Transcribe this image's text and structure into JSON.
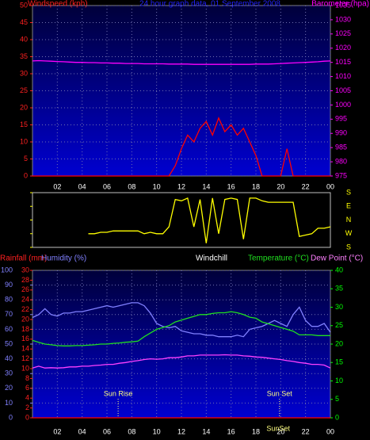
{
  "chart_data": [
    {
      "type": "line",
      "title": "24 hour graph data, 01 September 2008",
      "ylabel": "Windspeed (kph)",
      "y2label": "Barometer (hpa)",
      "x": [
        0,
        0.5,
        1,
        1.5,
        2,
        2.5,
        3,
        3.5,
        4,
        4.5,
        5,
        5.5,
        6,
        6.5,
        7,
        7.5,
        8,
        8.5,
        9,
        9.5,
        10,
        10.5,
        11,
        11.5,
        12,
        12.5,
        13,
        13.5,
        14,
        14.5,
        15,
        15.5,
        16,
        16.5,
        17,
        17.5,
        18,
        18.5,
        19,
        19.5,
        20,
        20.5,
        21,
        21.5,
        22,
        22.5,
        23,
        23.5,
        24
      ],
      "xlim": [
        0,
        24
      ],
      "xticks": [
        {
          "value": 2,
          "label": "02"
        },
        {
          "value": 4,
          "label": "04"
        },
        {
          "value": 6,
          "label": "06"
        },
        {
          "value": 8,
          "label": "08"
        },
        {
          "value": 10,
          "label": "10"
        },
        12,
        14,
        16,
        18,
        20,
        22,
        {
          "value": 24,
          "label": "00"
        }
      ],
      "ylim": [
        0,
        50
      ],
      "yticks": [
        0,
        5,
        10,
        15,
        20,
        25,
        30,
        35,
        40,
        45,
        50
      ],
      "y2lim": [
        975,
        1035
      ],
      "y2ticks": [
        975,
        980,
        985,
        990,
        995,
        1000,
        1005,
        1010,
        1015,
        1020,
        1025,
        1030,
        1035
      ],
      "axis_colors": {
        "y": "#ff2020",
        "y2": "#ff00ff"
      },
      "grid": true,
      "series": [
        {
          "name": "Windspeed",
          "color": "#ff0000",
          "axis": "y",
          "values": [
            0,
            0,
            0,
            0,
            0,
            0,
            0,
            0,
            0,
            0,
            0,
            0,
            0,
            0,
            0,
            0,
            0,
            0,
            0,
            0,
            0,
            0,
            0,
            3,
            8,
            12,
            10,
            14,
            16,
            12,
            17,
            13,
            15,
            12,
            14,
            10,
            6,
            0,
            0,
            0,
            0,
            8,
            0,
            0,
            0,
            0,
            0,
            0,
            0
          ]
        },
        {
          "name": "Barometer",
          "color": "#ff00ff",
          "axis": "y2",
          "values": [
            1015.5,
            1015.6,
            1015.5,
            1015.4,
            1015.3,
            1015.2,
            1015.1,
            1015.0,
            1015.0,
            1014.9,
            1014.9,
            1014.8,
            1014.8,
            1014.7,
            1014.7,
            1014.6,
            1014.6,
            1014.6,
            1014.5,
            1014.5,
            1014.5,
            1014.5,
            1014.4,
            1014.4,
            1014.4,
            1014.4,
            1014.3,
            1014.3,
            1014.3,
            1014.3,
            1014.3,
            1014.3,
            1014.3,
            1014.3,
            1014.3,
            1014.3,
            1014.4,
            1014.4,
            1014.4,
            1014.5,
            1014.6,
            1014.7,
            1014.8,
            1014.9,
            1015.0,
            1015.1,
            1015.2,
            1015.4,
            1015.5
          ]
        }
      ]
    },
    {
      "type": "line",
      "x": [
        0,
        0.5,
        1,
        1.5,
        2,
        2.5,
        3,
        3.5,
        4,
        4.5,
        5,
        5.5,
        6,
        6.5,
        7,
        7.5,
        8,
        8.5,
        9,
        9.5,
        10,
        10.5,
        11,
        11.5,
        12,
        12.5,
        13,
        13.5,
        14,
        14.5,
        15,
        15.5,
        16,
        16.5,
        17,
        17.5,
        18,
        18.5,
        19,
        19.5,
        20,
        20.5,
        21,
        21.5,
        22,
        22.5,
        23,
        23.5,
        24
      ],
      "xlim": [
        0,
        24
      ],
      "ylim": [
        0,
        4
      ],
      "yticks": [
        {
          "value": 4,
          "label": "S"
        },
        {
          "value": 3,
          "label": "E"
        },
        {
          "value": 2,
          "label": "N"
        },
        {
          "value": 1,
          "label": "W"
        },
        {
          "value": 0,
          "label": "S"
        }
      ],
      "axis_colors": {
        "y": "#ffff00"
      },
      "grid": false,
      "series": [
        {
          "name": "Wind direction",
          "color": "#ffff00",
          "axis": "y",
          "values": [
            null,
            null,
            null,
            null,
            null,
            null,
            null,
            null,
            null,
            1.0,
            1.0,
            1.1,
            1.1,
            1.2,
            1.2,
            1.2,
            1.2,
            1.2,
            1.0,
            1.1,
            1.0,
            1.0,
            1.5,
            3.5,
            3.4,
            3.6,
            1.5,
            3.5,
            0.3,
            3.6,
            1.0,
            3.5,
            3.6,
            3.5,
            0.6,
            3.6,
            3.6,
            3.4,
            3.3,
            3.3,
            3.3,
            3.3,
            3.3,
            0.8,
            0.9,
            1.0,
            1.4,
            1.4,
            1.5
          ]
        }
      ]
    },
    {
      "type": "line",
      "windchill_label": "Windchill",
      "x": [
        0,
        0.5,
        1,
        1.5,
        2,
        2.5,
        3,
        3.5,
        4,
        4.5,
        5,
        5.5,
        6,
        6.5,
        7,
        7.5,
        8,
        8.5,
        9,
        9.5,
        10,
        10.5,
        11,
        11.5,
        12,
        12.5,
        13,
        13.5,
        14,
        14.5,
        15,
        15.5,
        16,
        16.5,
        17,
        17.5,
        18,
        18.5,
        19,
        19.5,
        20,
        20.5,
        21,
        21.5,
        22,
        22.5,
        23,
        23.5,
        24
      ],
      "xlim": [
        0,
        24
      ],
      "xticks": [
        {
          "value": 2,
          "label": "02"
        },
        {
          "value": 4,
          "label": "04"
        },
        {
          "value": 6,
          "label": "06"
        },
        {
          "value": 8,
          "label": "08"
        },
        {
          "value": 10,
          "label": "10"
        },
        12,
        14,
        16,
        18,
        20,
        22,
        {
          "value": 24,
          "label": "00"
        }
      ],
      "ylim": [
        0,
        100
      ],
      "yticks": [
        0,
        10,
        20,
        30,
        40,
        50,
        60,
        70,
        80,
        90,
        100
      ],
      "y2lim": [
        0,
        40
      ],
      "y2ticks": [
        0,
        5,
        10,
        15,
        20,
        25,
        30,
        35,
        40
      ],
      "y3lim": [
        0,
        30
      ],
      "y3ticks": [
        0,
        2,
        4,
        6,
        8,
        10,
        12,
        14,
        16,
        18,
        20,
        22,
        24,
        26,
        28,
        30
      ],
      "axis_colors": {
        "y": "#8080ff",
        "y2": "#00ff00",
        "y3": "#ff2020"
      },
      "grid": true,
      "annotations": [
        {
          "text": "Sun Rise",
          "x": 6.9
        },
        {
          "text": "Sun Set",
          "x": 19.9
        },
        {
          "text": "SunSet",
          "x": 19.8
        }
      ],
      "series": [
        {
          "name": "Rainfall (mm)",
          "color": "#ff0000",
          "axis": "y3",
          "values": [
            0,
            0,
            0,
            0,
            0,
            0,
            0,
            0,
            0,
            0,
            0,
            0,
            0,
            0,
            0,
            0,
            0,
            0,
            0,
            0,
            0,
            0,
            0,
            0,
            0,
            0,
            0,
            0,
            0,
            0,
            0,
            0,
            0,
            0,
            0,
            0,
            0,
            0,
            0,
            0,
            0,
            0,
            0,
            0,
            0,
            0,
            0,
            0,
            0
          ]
        },
        {
          "name": "Humidity (%)",
          "color": "#8080ff",
          "axis": "y",
          "values": [
            68,
            70,
            74,
            70,
            69,
            71,
            71,
            72,
            72,
            73,
            74,
            75,
            76,
            75,
            76,
            77,
            78,
            78,
            76,
            71,
            64,
            62,
            61,
            62,
            59,
            58,
            57,
            57,
            56,
            56,
            55,
            55,
            55,
            56,
            55,
            60,
            61,
            62,
            64,
            66,
            64,
            62,
            70,
            75,
            66,
            62,
            62,
            64,
            58
          ]
        },
        {
          "name": "Temperature (°C)",
          "color": "#20e020",
          "axis": "y2",
          "values": [
            21,
            20.5,
            20,
            19.8,
            19.6,
            19.5,
            19.5,
            19.6,
            19.6,
            19.7,
            19.8,
            20,
            20,
            20.2,
            20.3,
            20.5,
            20.6,
            20.8,
            22,
            23,
            24,
            24.5,
            25,
            26,
            26.5,
            27,
            27.5,
            28,
            28,
            28.3,
            28.5,
            28.5,
            28.8,
            28.5,
            28,
            27.3,
            27,
            26,
            25.5,
            25,
            24.5,
            24,
            23.5,
            22.5,
            22.5,
            22.5,
            22.3,
            22.3,
            22.3
          ]
        },
        {
          "name": "Dew Point (°C)",
          "color": "#ff40ff",
          "axis": "y2",
          "values": [
            13.5,
            14,
            13.5,
            13.6,
            13.5,
            13.6,
            13.8,
            13.8,
            14,
            14,
            14.2,
            14.3,
            14.5,
            14.5,
            14.8,
            15,
            15.3,
            15.5,
            15.8,
            16,
            15.9,
            16,
            16.3,
            16.3,
            16.5,
            16.8,
            16.8,
            17,
            17,
            17,
            17,
            17.1,
            17,
            17,
            16.8,
            16.7,
            16.5,
            16.4,
            16.2,
            16,
            15.8,
            15.5,
            15.3,
            15,
            14.8,
            14.5,
            14.5,
            14.3,
            13.5
          ]
        }
      ]
    }
  ]
}
